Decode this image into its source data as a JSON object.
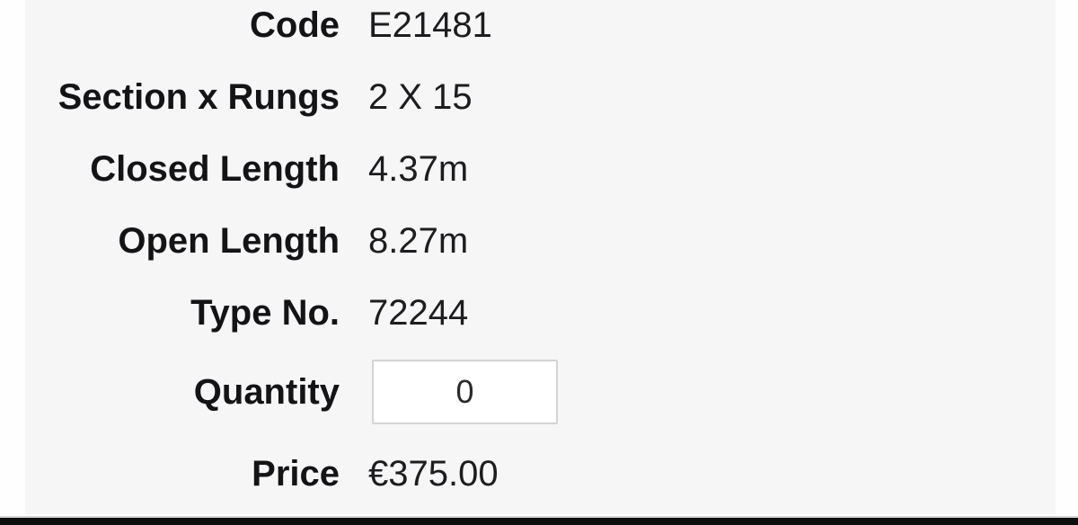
{
  "page": {
    "panel_background": "#f6f6f7",
    "side_strip_color": "#fefefe",
    "bottom_bar_color": "#0d0d0d",
    "text_color": "#1d1d1f"
  },
  "product": {
    "fields": [
      {
        "label": "Code",
        "value": "E21481"
      },
      {
        "label": "Section x Rungs",
        "value": "2 X 15"
      },
      {
        "label": "Closed Length",
        "value": "4.37m"
      },
      {
        "label": "Open Length",
        "value": "8.27m"
      },
      {
        "label": "Type No.",
        "value": "72244"
      }
    ],
    "quantity": {
      "label": "Quantity",
      "value": "0"
    },
    "price": {
      "label": "Price",
      "value": "€375.00"
    }
  }
}
